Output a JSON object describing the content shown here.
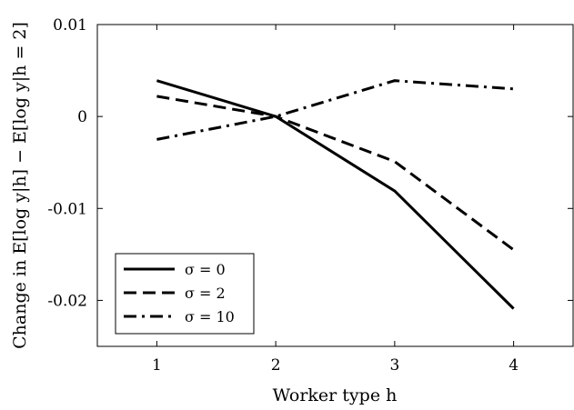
{
  "chart_data": {
    "type": "line",
    "xlabel": "Worker type h",
    "ylabel": "Change in E[log y|h] − E[log y|h = 2]",
    "xlim": [
      0.5,
      4.5
    ],
    "ylim": [
      -0.025,
      0.01
    ],
    "x_ticks": [
      1,
      2,
      3,
      4
    ],
    "x_tick_labels": [
      "1",
      "2",
      "3",
      "4"
    ],
    "y_ticks": [
      0.01,
      0,
      -0.01,
      -0.02
    ],
    "y_tick_labels": [
      "0.01",
      "0",
      "-0.01",
      "-0.02"
    ],
    "grid": false,
    "legend_position": "bottom-left",
    "x": [
      1,
      2,
      3,
      4
    ],
    "series": [
      {
        "name": "σ = 0",
        "values": [
          0.0039,
          0.0,
          -0.0081,
          -0.0209
        ],
        "dash": "solid"
      },
      {
        "name": "σ = 2",
        "values": [
          0.0022,
          0.0,
          -0.0049,
          -0.0145
        ],
        "dash": "dashed"
      },
      {
        "name": "σ = 10",
        "values": [
          -0.0025,
          0.0,
          0.0039,
          0.003
        ],
        "dash": "dashdot"
      }
    ]
  }
}
